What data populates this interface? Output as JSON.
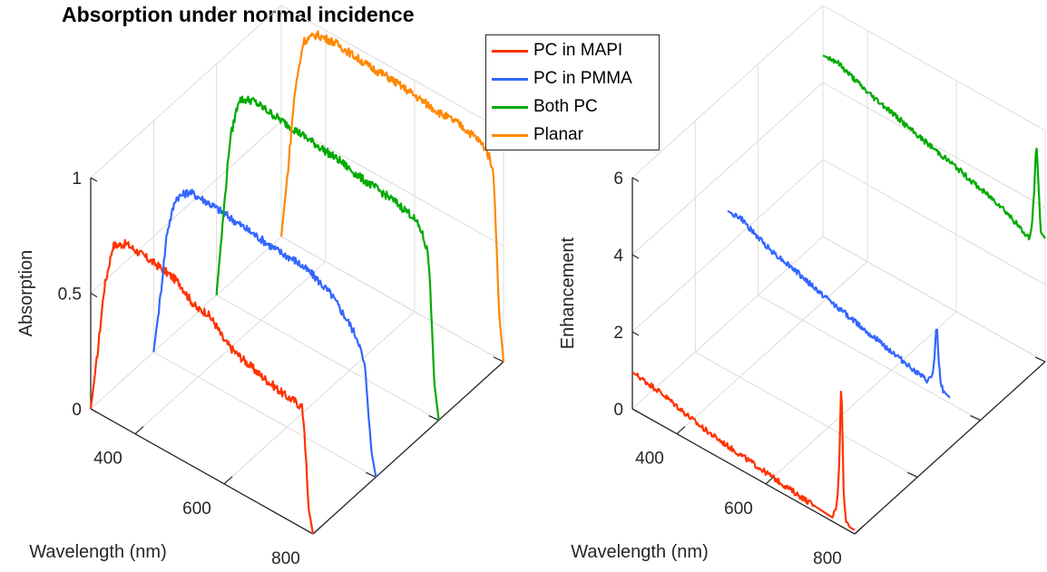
{
  "figure": {
    "title": "Absorption under normal incidence"
  },
  "chart_data": [
    {
      "type": "line",
      "projection": "3d-waterfall",
      "title": "Absorption under normal incidence",
      "xlabel": "Wavelength (nm)",
      "ylabel": "",
      "zlabel": "Absorption",
      "xlim": [
        300,
        800
      ],
      "zlim": [
        0,
        1
      ],
      "x_ticks": [
        "400",
        "600",
        "800"
      ],
      "z_ticks": [
        "0",
        "0.5",
        "1"
      ],
      "grid": true,
      "legend_position": "top-right",
      "series": [
        {
          "name": "PC in MAPI",
          "color": "#ff3300",
          "x": [
            300,
            315,
            330,
            350,
            380,
            420,
            460,
            500,
            520,
            540,
            560,
            580,
            600,
            620,
            650,
            680,
            700,
            720,
            740,
            760,
            775,
            780,
            790,
            800
          ],
          "y": [
            0.0,
            0.25,
            0.55,
            0.76,
            0.8,
            0.79,
            0.78,
            0.76,
            0.72,
            0.69,
            0.7,
            0.67,
            0.62,
            0.6,
            0.58,
            0.56,
            0.55,
            0.54,
            0.53,
            0.53,
            0.52,
            0.45,
            0.1,
            0.0
          ]
        },
        {
          "name": "PC in PMMA",
          "color": "#3366ff",
          "x": [
            300,
            315,
            330,
            350,
            380,
            420,
            460,
            500,
            540,
            580,
            620,
            660,
            700,
            740,
            760,
            775,
            780,
            790,
            800
          ],
          "y": [
            0.0,
            0.25,
            0.55,
            0.72,
            0.78,
            0.78,
            0.77,
            0.76,
            0.75,
            0.74,
            0.74,
            0.72,
            0.68,
            0.6,
            0.55,
            0.45,
            0.35,
            0.1,
            0.0
          ]
        },
        {
          "name": "Both PC",
          "color": "#00aa00",
          "x": [
            300,
            315,
            330,
            350,
            380,
            420,
            460,
            500,
            540,
            580,
            620,
            660,
            700,
            740,
            760,
            775,
            780,
            790,
            800
          ],
          "y": [
            0.0,
            0.35,
            0.7,
            0.9,
            0.93,
            0.92,
            0.91,
            0.9,
            0.89,
            0.88,
            0.86,
            0.85,
            0.84,
            0.82,
            0.78,
            0.7,
            0.6,
            0.15,
            0.0
          ]
        },
        {
          "name": "Planar",
          "color": "#ff8800",
          "x": [
            300,
            315,
            330,
            350,
            380,
            420,
            460,
            500,
            540,
            580,
            620,
            660,
            700,
            740,
            760,
            775,
            780,
            790,
            800
          ],
          "y": [
            0.0,
            0.3,
            0.65,
            0.9,
            0.96,
            0.97,
            0.96,
            0.95,
            0.95,
            0.94,
            0.93,
            0.92,
            0.92,
            0.9,
            0.88,
            0.82,
            0.7,
            0.2,
            0.0
          ]
        }
      ]
    },
    {
      "type": "line",
      "projection": "3d-waterfall",
      "title": "",
      "xlabel": "Wavelength (nm)",
      "ylabel": "",
      "zlabel": "Enhancement",
      "xlim": [
        300,
        800
      ],
      "zlim": [
        0,
        6
      ],
      "x_ticks": [
        "400",
        "600",
        "800"
      ],
      "z_ticks": [
        "0",
        "2",
        "4",
        "6"
      ],
      "grid": true,
      "series": [
        {
          "name": "PC in MAPI",
          "color": "#ff3300",
          "x": [
            300,
            330,
            360,
            400,
            450,
            500,
            550,
            600,
            650,
            700,
            730,
            750,
            760,
            765,
            770,
            775,
            780,
            785,
            790,
            800
          ],
          "y": [
            0.95,
            0.9,
            0.85,
            0.72,
            0.55,
            0.45,
            0.38,
            0.3,
            0.22,
            0.15,
            0.12,
            0.1,
            0.5,
            1.5,
            3.9,
            1.0,
            0.2,
            0.15,
            0.1,
            0.1
          ]
        },
        {
          "name": "PC in PMMA",
          "color": "#3366ff",
          "x": [
            300,
            330,
            360,
            400,
            450,
            500,
            550,
            600,
            650,
            700,
            730,
            750,
            760,
            765,
            770,
            775,
            780,
            785,
            790,
            800
          ],
          "y": [
            2.9,
            2.9,
            2.7,
            2.5,
            2.35,
            2.15,
            2.0,
            1.85,
            1.7,
            1.55,
            1.45,
            1.4,
            1.6,
            2.0,
            3.1,
            2.0,
            1.5,
            1.4,
            1.35,
            1.3
          ]
        },
        {
          "name": "Both PC",
          "color": "#00aa00",
          "x": [
            300,
            330,
            360,
            400,
            450,
            500,
            550,
            600,
            650,
            700,
            730,
            750,
            760,
            765,
            770,
            775,
            780,
            785,
            790,
            800
          ],
          "y": [
            4.7,
            4.75,
            4.6,
            4.4,
            4.25,
            4.05,
            3.9,
            3.75,
            3.55,
            3.4,
            3.2,
            3.05,
            3.0,
            3.0,
            3.3,
            4.2,
            5.6,
            4.5,
            3.3,
            3.2
          ]
        }
      ]
    }
  ]
}
